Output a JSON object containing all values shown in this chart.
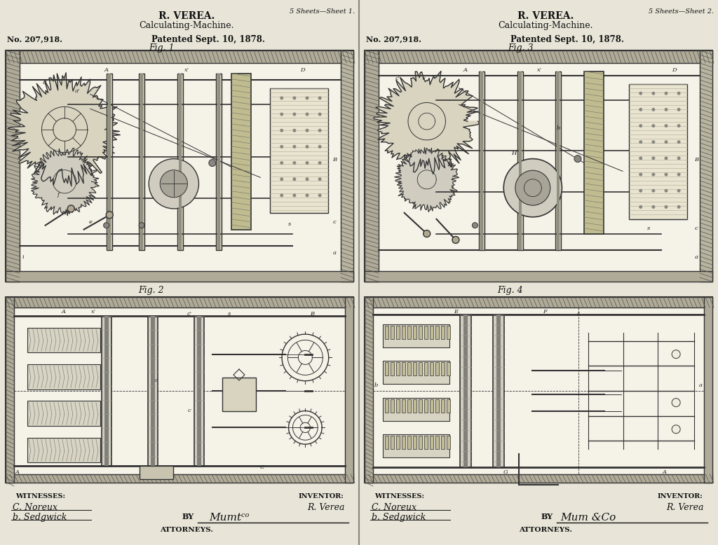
{
  "bg_color": "#c8c4b4",
  "panel_bg": "#e8e5d8",
  "diagram_bg": "#dedad0",
  "left_panel": {
    "sheet_label": "5 Sheets—Sheet 1.",
    "inventor": "R. VEREA.",
    "machine": "Calculating-Machine.",
    "patent_no": "No. 207,918.",
    "patented": "Patented Sept. 10, 1878.",
    "fig1_label": "Fig. 1",
    "fig2_label": "Fig. 2",
    "witnesses_label": "WITNESSES:",
    "witness1": "C. Noreux",
    "witness2": "b. Sedgwick",
    "inventor_label": "INVENTOR:",
    "inventor_sig": "R. Verea",
    "by_text": "BY",
    "attorney_sig": "Mumtᶜᵒ",
    "attorneys": "ATTORNEYS."
  },
  "right_panel": {
    "sheet_label": "5 Sheets—Sheet 2.",
    "inventor": "R. VEREA.",
    "machine": "Calculating-Machine.",
    "patent_no": "No. 207,918.",
    "patented": "Patented Sept. 10, 1878.",
    "fig3_label": "Fig. 3",
    "fig4_label": "Fig. 4",
    "witnesses_label": "WITNESSES:",
    "witness1": "C. Noreux",
    "witness2": "b. Sedgwick",
    "inventor_label": "INVENTOR:",
    "inventor_sig": "R. Verea",
    "by_text": "BY",
    "attorney_sig": "Mum &Co",
    "attorneys": "ATTORNEYS."
  },
  "divider_color": "#888880",
  "text_color": "#111111",
  "line_color": "#222222",
  "fig_width": 10.24,
  "fig_height": 7.78
}
